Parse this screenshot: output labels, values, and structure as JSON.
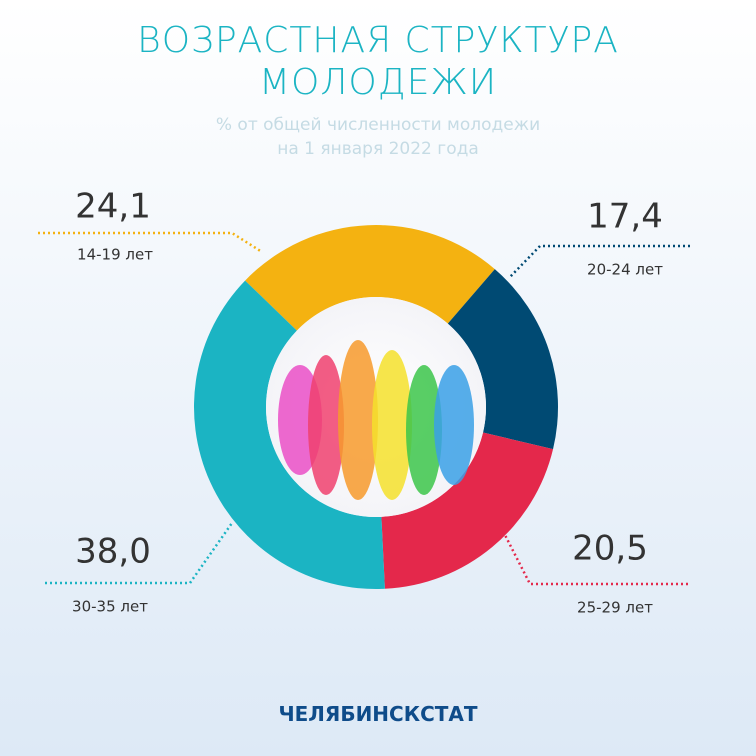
{
  "chart_data": {
    "type": "pie",
    "title": [
      "ВОЗРАСТНАЯ СТРУКТУРА",
      "МОЛОДЕЖИ"
    ],
    "subtitle": [
      "% от общей численности  молодежи",
      "на 1 января 2022 года"
    ],
    "categories": [
      "14-19 лет",
      "20-24 лет",
      "25-29 лет",
      "30-35 лет"
    ],
    "values": [
      24.1,
      17.4,
      20.5,
      38.0
    ],
    "value_labels": [
      "24,1",
      "17,4",
      "20,5",
      "38,0"
    ],
    "colors": [
      "#f4b211",
      "#004a73",
      "#e4284b",
      "#1bb4c3"
    ]
  },
  "footer": "ЧЕЛЯБИНСКСТАТ"
}
